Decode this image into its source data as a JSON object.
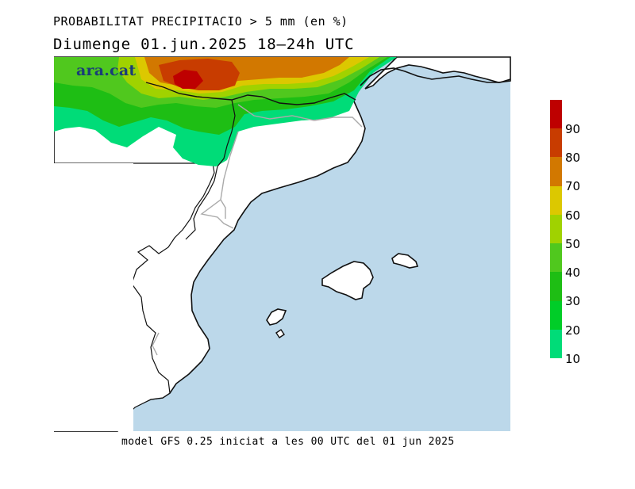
{
  "header": {
    "title_line1": "PROBABILITAT PRECIPITACIO > 5 mm (en %)",
    "title_line2": "Diumenge  01.jun.2025 18–24h UTC"
  },
  "logo": {
    "text": "ara.cat"
  },
  "footer": {
    "text": "model GFS 0.25 iniciat a les 00 UTC del 01 jun 2025"
  },
  "legend": {
    "colors": [
      "#00dc78",
      "#00cd28",
      "#1ebe14",
      "#50c81e",
      "#a0d200",
      "#dcc800",
      "#d27800",
      "#c83c00",
      "#be0000"
    ],
    "ticks": [
      "10",
      "20",
      "30",
      "40",
      "50",
      "60",
      "70",
      "80",
      "90"
    ]
  },
  "map_colors": {
    "sea": "#bcd8ea",
    "land": "#ffffff",
    "coast": "#111111",
    "border": "#aaaaaa"
  }
}
